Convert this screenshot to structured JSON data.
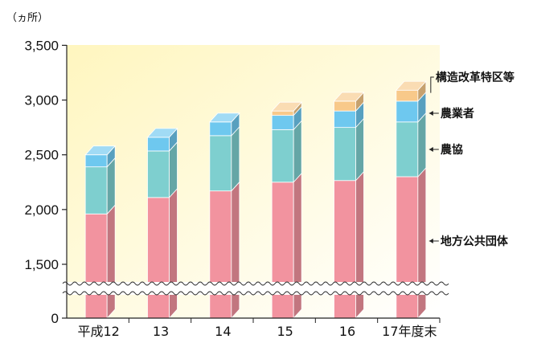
{
  "chart_data": {
    "type": "bar",
    "stacked": true,
    "unit_label": "（ヵ所）",
    "categories": [
      "平成12",
      "13",
      "14",
      "15",
      "16",
      "17年度末"
    ],
    "y_ticks": [
      "0",
      "1,500",
      "2,000",
      "2,500",
      "3,000",
      "3,500"
    ],
    "y_tick_values": [
      0,
      1500,
      2000,
      2500,
      3000,
      3500
    ],
    "axis_break": true,
    "series": [
      {
        "name": "地方公共団体",
        "color": "#f2939f",
        "values": [
          1960,
          2110,
          2170,
          2250,
          2265,
          2300
        ]
      },
      {
        "name": "農協",
        "color": "#7ecfcf",
        "values": [
          430,
          425,
          505,
          480,
          485,
          500
        ]
      },
      {
        "name": "農業者",
        "color": "#6ec8ef",
        "values": [
          110,
          125,
          125,
          130,
          150,
          190
        ]
      },
      {
        "name": "構造改革特区等",
        "color": "#f8c98a",
        "values": [
          0,
          0,
          0,
          40,
          90,
          100
        ]
      }
    ],
    "legend_labels": [
      "構造改革特区等",
      "農業者",
      "農協",
      "地方公共団体"
    ],
    "background_gradient": [
      "#fff7c2",
      "#ffffff"
    ]
  }
}
